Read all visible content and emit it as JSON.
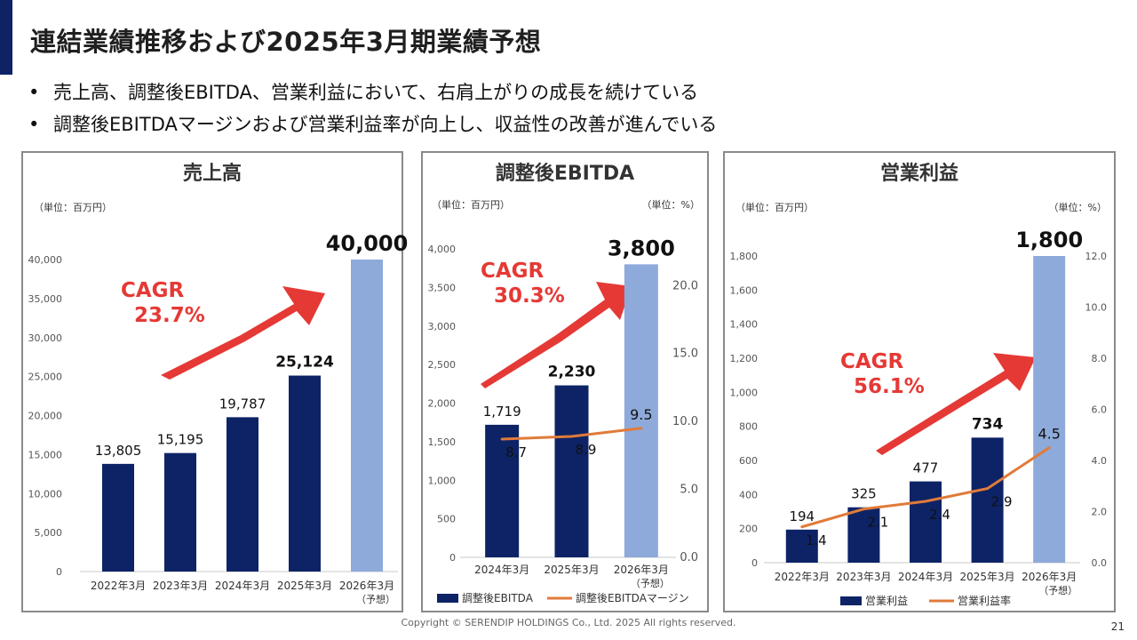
{
  "title": "連結業績推移および2025年3月期業績予想",
  "bullets": [
    "売上高、調整後EBITDA、営業利益において、右肩上がりの成長を続けている",
    "調整後EBITDAマージンおよび営業利益率が向上し、収益性の改善が進んでいる"
  ],
  "footer": "Copyright © SERENDIP HOLDINGS Co., Ltd.  2025 All rights reserved.",
  "page_number": "21",
  "colors": {
    "bar_actual": "#0d2366",
    "bar_forecast": "#8eaadb",
    "line": "#e07b39",
    "cagr": "#e53935"
  },
  "chart_data": [
    {
      "type": "bar",
      "title": "売上高",
      "unit_left": "（単位：百万円）",
      "categories": [
        [
          "2022年3月"
        ],
        [
          "2023年3月"
        ],
        [
          "2024年3月"
        ],
        [
          "2025年3月"
        ],
        [
          "2026年3月",
          "（予想）"
        ]
      ],
      "values": [
        13805,
        15195,
        19787,
        25124,
        40000
      ],
      "value_labels": [
        "13,805",
        "15,195",
        "19,787",
        "25,124",
        "40,000"
      ],
      "forecast_index": 4,
      "ylim": [
        0,
        40000
      ],
      "yticks": [
        0,
        5000,
        10000,
        15000,
        20000,
        25000,
        30000,
        35000,
        40000
      ],
      "ytick_labels": [
        "0",
        "5,000",
        "10,000",
        "15,000",
        "20,000",
        "25,000",
        "30,000",
        "35,000",
        "40,000"
      ],
      "cagr": [
        "CAGR",
        "23.7%"
      ]
    },
    {
      "type": "bar+line",
      "title": "調整後EBITDA",
      "unit_left": "（単位：百万円）",
      "unit_right": "（単位：%）",
      "categories": [
        [
          "2024年3月"
        ],
        [
          "2025年3月"
        ],
        [
          "2026年3月",
          "（予想）"
        ]
      ],
      "values": [
        1719,
        2230,
        3800
      ],
      "value_labels": [
        "1,719",
        "2,230",
        "3,800"
      ],
      "forecast_index": 2,
      "ylim": [
        0,
        4000
      ],
      "yticks": [
        0,
        500,
        1000,
        1500,
        2000,
        2500,
        3000,
        3500,
        4000
      ],
      "ytick_labels": [
        "0",
        "500",
        "1,000",
        "1,500",
        "2,000",
        "2,500",
        "3,000",
        "3,500",
        "4,000"
      ],
      "line_values": [
        8.7,
        8.9,
        9.5
      ],
      "line_labels": [
        "8.7",
        "8.9",
        "9.5"
      ],
      "y2lim": [
        0,
        22.7
      ],
      "y2ticks": [
        0,
        5,
        10,
        15,
        20
      ],
      "y2tick_labels": [
        "0.0",
        "5.0",
        "10.0",
        "15.0",
        "20.0"
      ],
      "legend": [
        "調整後EBITDA",
        "調整後EBITDAマージン"
      ],
      "cagr": [
        "CAGR",
        "30.3%"
      ]
    },
    {
      "type": "bar+line",
      "title": "営業利益",
      "unit_left": "（単位：百万円）",
      "unit_right": "（単位：%）",
      "categories": [
        [
          "2022年3月"
        ],
        [
          "2023年3月"
        ],
        [
          "2024年3月"
        ],
        [
          "2025年3月"
        ],
        [
          "2026年3月",
          "（予想）"
        ]
      ],
      "values": [
        194,
        325,
        477,
        734,
        1800
      ],
      "value_labels": [
        "194",
        "325",
        "477",
        "734",
        "1,800"
      ],
      "forecast_index": 4,
      "ylim": [
        0,
        1800
      ],
      "yticks": [
        0,
        200,
        400,
        600,
        800,
        1000,
        1200,
        1400,
        1600,
        1800
      ],
      "ytick_labels": [
        "0",
        "200",
        "400",
        "600",
        "800",
        "1,000",
        "1,200",
        "1,400",
        "1,600",
        "1,800"
      ],
      "line_values": [
        1.4,
        2.1,
        2.4,
        2.9,
        4.5
      ],
      "line_labels": [
        "1.4",
        "2.1",
        "2.4",
        "2.9",
        "4.5"
      ],
      "y2lim": [
        0,
        12
      ],
      "y2ticks": [
        0,
        2,
        4,
        6,
        8,
        10,
        12
      ],
      "y2tick_labels": [
        "0.0",
        "2.0",
        "4.0",
        "6.0",
        "8.0",
        "10.0",
        "12.0"
      ],
      "legend": [
        "営業利益",
        "営業利益率"
      ],
      "cagr": [
        "CAGR",
        "56.1%"
      ]
    }
  ]
}
